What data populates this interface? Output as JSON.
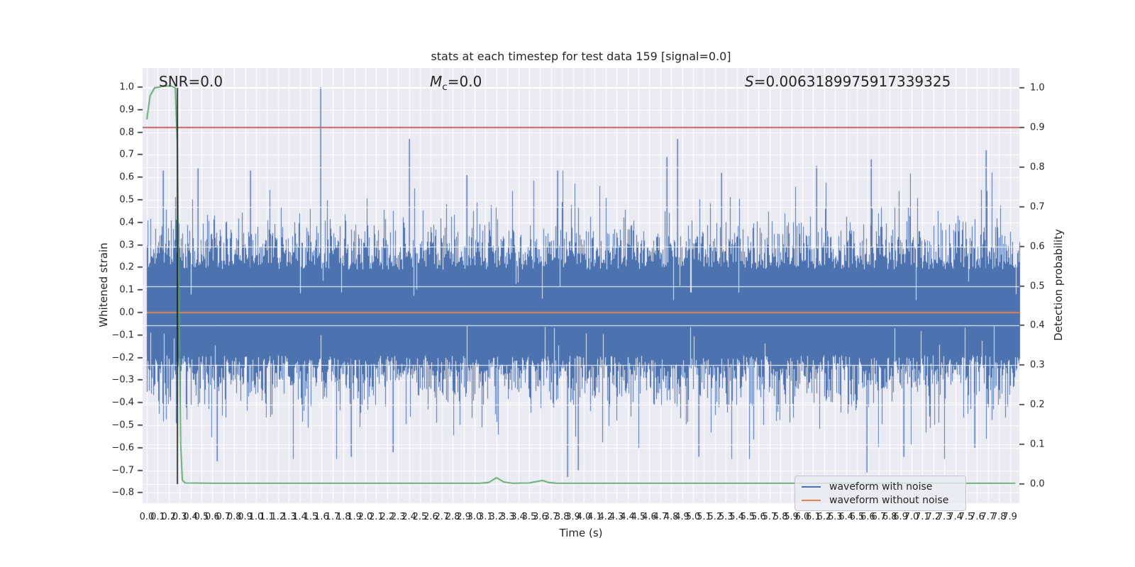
{
  "figure": {
    "title": "stats at each timestep for test data 159 [signal=0.0]",
    "background": "#ffffff",
    "plot_background": "#eaeaf2",
    "grid_color": "#ffffff",
    "text_color": "#262626"
  },
  "annotations": {
    "snr": "SNR=0.0",
    "mc_var": "M",
    "mc_sub": "c",
    "mc_rest": "=0.0",
    "s_var": "S",
    "s_rest": "=0.0063189975917339325"
  },
  "axes": {
    "x": {
      "label": "Time (s)",
      "tick_labels": [
        "0.0",
        "0.1",
        "0.2",
        "0.3",
        "0.4",
        "0.5",
        "0.6",
        "0.7",
        "0.8",
        "0.9",
        "1.0",
        "1.1",
        "1.2",
        "1.3",
        "1.4",
        "1.5",
        "1.6",
        "1.7",
        "1.8",
        "1.9",
        "2.0",
        "2.1",
        "2.2",
        "2.3",
        "2.4",
        "2.5",
        "2.6",
        "2.7",
        "2.8",
        "2.9",
        "3.0",
        "3.1",
        "3.2",
        "3.3",
        "3.4",
        "3.5",
        "3.6",
        "3.7",
        "3.8",
        "3.9",
        "4.0",
        "4.1",
        "4.2",
        "4.3",
        "4.4",
        "4.5",
        "4.6",
        "4.7",
        "4.8",
        "4.9",
        "5.0",
        "5.1",
        "5.2",
        "5.3",
        "5.4",
        "5.5",
        "5.6",
        "5.7",
        "5.8",
        "5.9",
        "6.0",
        "6.1",
        "6.2",
        "6.3",
        "6.4",
        "6.5",
        "6.6",
        "6.7",
        "6.8",
        "6.9",
        "7.0",
        "7.1",
        "7.2",
        "7.3",
        "7.4",
        "7.5",
        "7.6",
        "7.7",
        "7.8",
        "7.9"
      ]
    },
    "y_left": {
      "label": "Whitened strain",
      "tick_labels": [
        "1.0",
        "0.9",
        "0.8",
        "0.7",
        "0.6",
        "0.5",
        "0.4",
        "0.3",
        "0.2",
        "0.1",
        "0.0",
        "−0.1",
        "−0.2",
        "−0.3",
        "−0.4",
        "−0.5",
        "−0.6",
        "−0.7",
        "−0.8"
      ]
    },
    "y_right": {
      "label": "Detection probability",
      "tick_labels": [
        "1.0",
        "0.9",
        "0.8",
        "0.7",
        "0.6",
        "0.5",
        "0.4",
        "0.3",
        "0.2",
        "0.1",
        "0.0"
      ]
    }
  },
  "legend": {
    "items": [
      {
        "label": "waveform with noise",
        "color": "#4c72b0"
      },
      {
        "label": "waveform without noise",
        "color": "#dd8452"
      }
    ]
  },
  "chart_data": {
    "type": "line",
    "title": "stats at each timestep for test data 159 [signal=0.0]",
    "xlabel": "Time (s)",
    "ylabel_left": "Whitened strain",
    "ylabel_right": "Detection probability",
    "x_range": [
      0.0,
      7.99
    ],
    "xtick_start": 0.0,
    "xtick_step": 0.1,
    "xtick_count": 80,
    "ylim_left": [
      -0.85,
      1.09
    ],
    "ylim_right": [
      -0.05,
      1.05
    ],
    "grid": true,
    "legend_position": "lower right",
    "stats": {
      "snr": 0.0,
      "chirp_mass": 0.0,
      "s_score": 0.0063189975917339325,
      "signal": 0.0,
      "test_data_index": 159
    },
    "series": [
      {
        "name": "waveform with noise",
        "axis": "left",
        "color": "#4c72b0",
        "style": "noise",
        "noise_envelope": {
          "seed": 1159,
          "base_amplitude": 0.19,
          "amplitude_jitter": 0.115,
          "burst_probability": 0.03,
          "slit_probability": 0.015,
          "max_amplitude": 0.65
        },
        "notable_peaks": [
          [
            0.15,
            0.63
          ],
          [
            0.47,
            0.64
          ],
          [
            0.95,
            0.63
          ],
          [
            1.59,
            1.0
          ],
          [
            2.4,
            0.77
          ],
          [
            2.93,
            0.61
          ],
          [
            3.76,
            0.63
          ],
          [
            4.76,
            0.69
          ],
          [
            4.86,
            0.77
          ],
          [
            5.26,
            0.62
          ],
          [
            6.13,
            0.65
          ],
          [
            6.63,
            0.68
          ],
          [
            7.68,
            0.72
          ]
        ],
        "notable_troughs": [
          [
            0.64,
            -0.66
          ],
          [
            1.87,
            -0.64
          ],
          [
            2.25,
            -0.62
          ],
          [
            3.85,
            -0.73
          ],
          [
            3.95,
            -0.7
          ],
          [
            5.05,
            -0.64
          ],
          [
            6.59,
            -0.71
          ],
          [
            6.93,
            -0.64
          ],
          [
            7.58,
            -0.6
          ]
        ]
      },
      {
        "name": "waveform without noise",
        "axis": "left",
        "color": "#dd8452",
        "style": "constant",
        "value": 0.0
      },
      {
        "name": "detection probability",
        "axis": "right",
        "color": "#55a868",
        "style": "line",
        "points": [
          [
            0.0,
            0.92
          ],
          [
            0.03,
            0.98
          ],
          [
            0.07,
            1.0
          ],
          [
            0.15,
            1.004
          ],
          [
            0.22,
            1.005
          ],
          [
            0.26,
            1.0
          ],
          [
            0.28,
            0.85
          ],
          [
            0.295,
            0.45
          ],
          [
            0.31,
            0.1
          ],
          [
            0.325,
            0.01
          ],
          [
            0.35,
            0.003
          ],
          [
            0.6,
            0.002
          ],
          [
            1.5,
            0.002
          ],
          [
            2.5,
            0.002
          ],
          [
            3.05,
            0.002
          ],
          [
            3.13,
            0.004
          ],
          [
            3.2,
            0.016
          ],
          [
            3.27,
            0.005
          ],
          [
            3.35,
            0.002
          ],
          [
            3.5,
            0.003
          ],
          [
            3.58,
            0.007
          ],
          [
            3.62,
            0.009
          ],
          [
            3.68,
            0.004
          ],
          [
            3.75,
            0.002
          ],
          [
            4.5,
            0.002
          ],
          [
            5.5,
            0.002
          ],
          [
            6.5,
            0.002
          ],
          [
            7.5,
            0.002
          ],
          [
            7.95,
            0.002
          ]
        ]
      },
      {
        "name": "detection threshold",
        "axis": "right",
        "color": "#c44e52",
        "style": "hline",
        "value": 0.9
      },
      {
        "name": "event time marker",
        "axis": "right",
        "color": "#141414",
        "style": "vline",
        "value": 0.28,
        "y_span": [
          0.0,
          1.0
        ]
      }
    ]
  }
}
